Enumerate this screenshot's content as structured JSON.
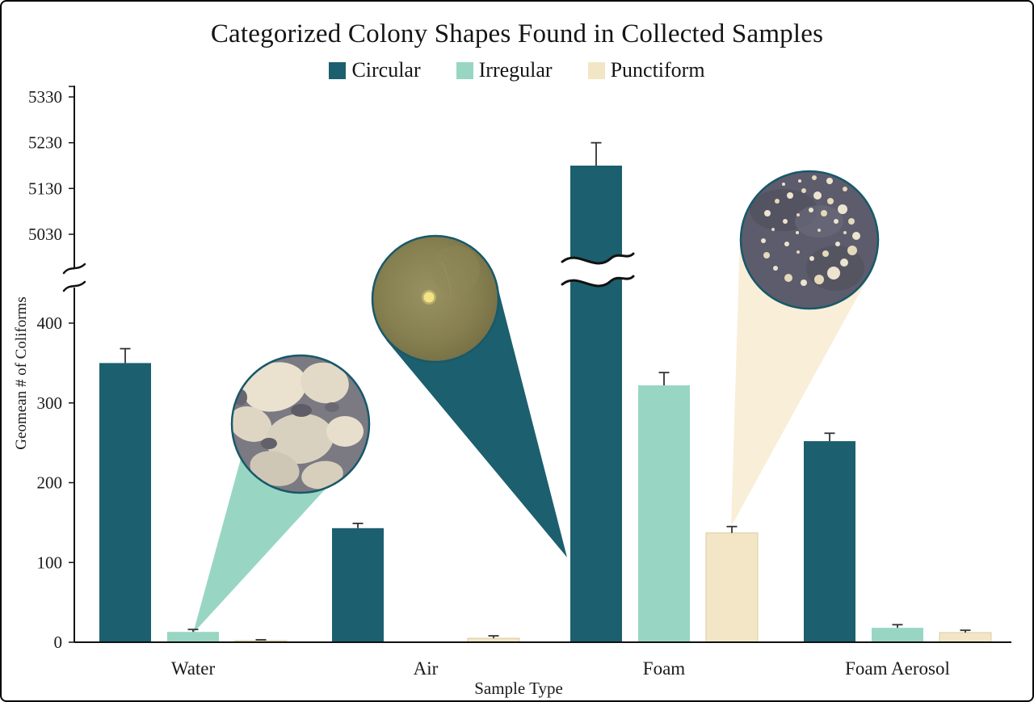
{
  "title": "Categorized Colony Shapes Found in Collected Samples",
  "colors": {
    "circular": "#1c5f6e",
    "irregular": "#98d6c3",
    "punctiform": "#f2e6c6",
    "callout_punctiform": "#f9eed8",
    "inset_border": "#17596a",
    "axis": "#111111"
  },
  "chart_data": {
    "type": "bar",
    "title": "Categorized Colony Shapes Found in Collected Samples",
    "xlabel": "Sample Type",
    "ylabel": "Geomean # of Coliforms",
    "categories": [
      "Water",
      "Air",
      "Foam",
      "Foam Aerosol"
    ],
    "series": [
      {
        "name": "Circular",
        "color": "#1c5f6e",
        "values": [
          350,
          143,
          5180,
          252
        ],
        "errors": [
          18,
          6,
          50,
          10
        ]
      },
      {
        "name": "Irregular",
        "color": "#98d6c3",
        "values": [
          13,
          0,
          322,
          18
        ],
        "errors": [
          3,
          0,
          16,
          4
        ]
      },
      {
        "name": "Punctiform",
        "color": "#f2e6c6",
        "edge": "#d9cba2",
        "values": [
          2,
          5,
          137,
          12
        ],
        "errors": [
          1,
          3,
          8,
          3
        ]
      }
    ],
    "y_axis": {
      "broken": true,
      "lower_ticks": [
        0,
        100,
        200,
        300,
        400
      ],
      "upper_ticks": [
        5030,
        5130,
        5230,
        5330
      ],
      "lower_range": [
        0,
        440
      ],
      "upper_range": [
        5030,
        5330
      ]
    },
    "legend_position": "top",
    "grid": false,
    "annotations": [
      "Circular inset photo: irregular colony morphology, callout from Water irregular bar",
      "Circular inset photo: single circular colony, callout from Foam circular bar",
      "Circular inset photo: punctiform colonies, callout from Foam punctiform bar"
    ]
  }
}
